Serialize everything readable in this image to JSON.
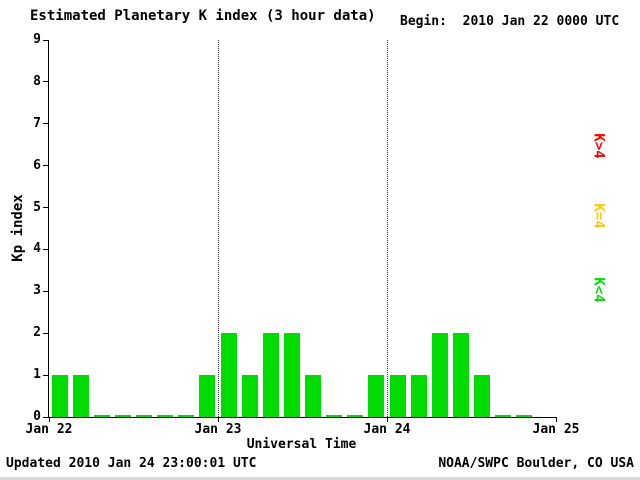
{
  "header": {
    "title": "Estimated Planetary K index (3 hour data)",
    "begin": "Begin:  2010 Jan 22 0000 UTC"
  },
  "chart_data": {
    "type": "bar",
    "title": "Estimated Planetary K index (3 hour data)",
    "xlabel": "Universal Time",
    "ylabel": "Kp index",
    "ylim": [
      0,
      9
    ],
    "yticks": [
      0,
      1,
      2,
      3,
      4,
      5,
      6,
      7,
      8,
      9
    ],
    "xtick_labels": [
      "Jan 22",
      "Jan 23",
      "Jan 24",
      "Jan 25"
    ],
    "bars_per_day": 8,
    "bar_interval_hours": 3,
    "values": [
      1,
      1,
      0,
      0,
      0,
      0,
      0,
      1,
      2,
      1,
      2,
      2,
      1,
      0,
      0,
      1,
      1,
      1,
      2,
      2,
      1,
      0,
      0,
      null
    ],
    "colors": {
      "low": "#00DC00",
      "mid": "#FFC800",
      "high": "#FF0000"
    },
    "legend": [
      {
        "label": "K>4",
        "color": "#FF0000"
      },
      {
        "label": "K=4",
        "color": "#FFC800"
      },
      {
        "label": "K<4",
        "color": "#00DC00"
      }
    ],
    "grid": "dotted vertical lines at day boundaries",
    "legend_position": "right"
  },
  "footer": {
    "updated": "Updated 2010 Jan 24 23:00:01 UTC",
    "credit": "NOAA/SWPC Boulder, CO USA"
  }
}
